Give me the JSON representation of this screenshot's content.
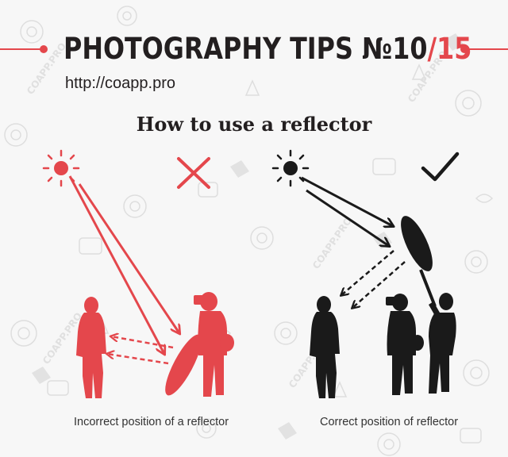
{
  "header": {
    "title_prefix": "PHOTOGRAPHY TIPS №10",
    "title_slash": "/",
    "title_total": "15",
    "url": "http://coapp.pro"
  },
  "main": {
    "subtitle": "How to use a reflector"
  },
  "panels": {
    "incorrect": {
      "caption": "Incorrect position of a reflector",
      "verdict_icon": "cross-mark-icon",
      "color": "#e4474c"
    },
    "correct": {
      "caption": "Correct position of reflector",
      "verdict_icon": "check-mark-icon",
      "color": "#1a1a1a"
    }
  },
  "watermark": {
    "text": "COAPP.PRO"
  },
  "colors": {
    "accent": "#e4474c",
    "ink": "#231f20",
    "background": "#f7f7f7"
  }
}
